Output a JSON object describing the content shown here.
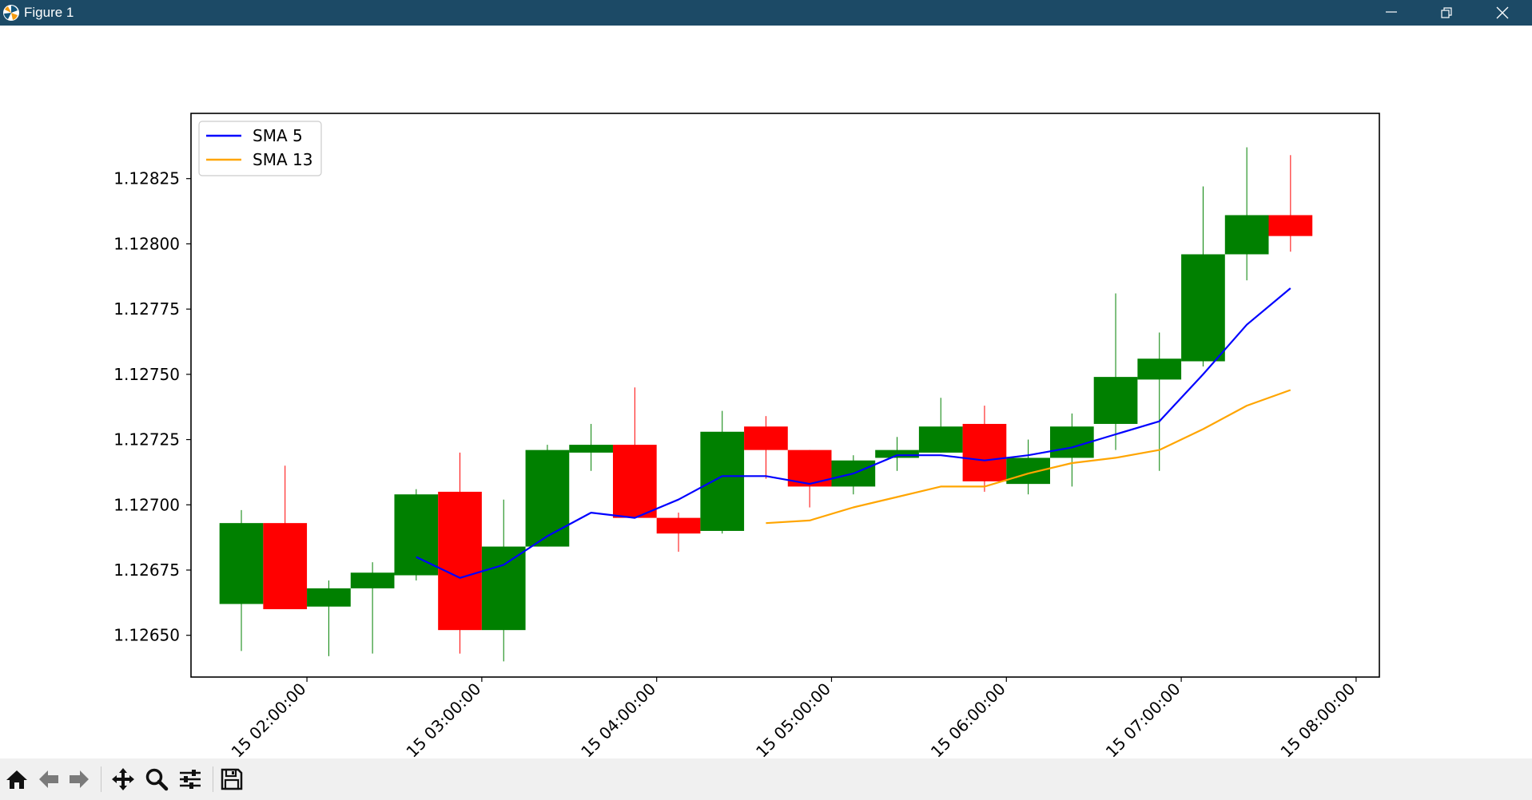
{
  "window": {
    "title": "Figure 1",
    "controls": [
      "minimize",
      "maximize",
      "close"
    ]
  },
  "toolbar": {
    "tools": [
      {
        "name": "home-icon",
        "tooltip": "Reset original view"
      },
      {
        "name": "back-icon",
        "tooltip": "Back to previous view"
      },
      {
        "name": "forward-icon",
        "tooltip": "Forward to next view"
      },
      {
        "name": "pan-icon",
        "tooltip": "Pan axes"
      },
      {
        "name": "zoom-icon",
        "tooltip": "Zoom to rectangle"
      },
      {
        "name": "configure-icon",
        "tooltip": "Configure subplots"
      },
      {
        "name": "save-icon",
        "tooltip": "Save the figure"
      }
    ]
  },
  "chart_data": {
    "type": "candlestick",
    "title": "",
    "xlabel": "",
    "ylabel": "",
    "interval_minutes": 15,
    "x_ticks": [
      "15 02:00:00",
      "15 03:00:00",
      "15 04:00:00",
      "15 05:00:00",
      "15 06:00:00",
      "15 07:00:00",
      "15 08:00:00"
    ],
    "y_ticks": [
      "1.12650",
      "1.12675",
      "1.12700",
      "1.12725",
      "1.12750",
      "1.12775",
      "1.12800",
      "1.12825"
    ],
    "ylim": [
      1.12634,
      1.1285
    ],
    "x_range_hours": [
      1.337,
      8.133
    ],
    "colors": {
      "up": "#008000",
      "down": "#ff0000",
      "sma5": "#0000ff",
      "sma13": "#ffa500"
    },
    "legend": {
      "location": "upper left",
      "entries": [
        "SMA 5",
        "SMA 13"
      ]
    },
    "candles": [
      {
        "t": 1.625,
        "o": 1.12662,
        "h": 1.12698,
        "l": 1.12644,
        "c": 1.12693
      },
      {
        "t": 1.875,
        "o": 1.12693,
        "h": 1.12715,
        "l": 1.1266,
        "c": 1.1266
      },
      {
        "t": 2.125,
        "o": 1.12661,
        "h": 1.12671,
        "l": 1.12642,
        "c": 1.12668
      },
      {
        "t": 2.375,
        "o": 1.12668,
        "h": 1.12678,
        "l": 1.12643,
        "c": 1.12674
      },
      {
        "t": 2.625,
        "o": 1.12673,
        "h": 1.12706,
        "l": 1.12671,
        "c": 1.12704
      },
      {
        "t": 2.875,
        "o": 1.12705,
        "h": 1.1272,
        "l": 1.12643,
        "c": 1.12652
      },
      {
        "t": 3.125,
        "o": 1.12652,
        "h": 1.12702,
        "l": 1.1264,
        "c": 1.12684
      },
      {
        "t": 3.375,
        "o": 1.12684,
        "h": 1.12723,
        "l": 1.12684,
        "c": 1.12721
      },
      {
        "t": 3.625,
        "o": 1.1272,
        "h": 1.12731,
        "l": 1.12713,
        "c": 1.12723
      },
      {
        "t": 3.875,
        "o": 1.12723,
        "h": 1.12745,
        "l": 1.12695,
        "c": 1.12695
      },
      {
        "t": 4.125,
        "o": 1.12695,
        "h": 1.12697,
        "l": 1.12682,
        "c": 1.12689
      },
      {
        "t": 4.375,
        "o": 1.1269,
        "h": 1.12736,
        "l": 1.12689,
        "c": 1.12728
      },
      {
        "t": 4.625,
        "o": 1.1273,
        "h": 1.12734,
        "l": 1.1271,
        "c": 1.12721
      },
      {
        "t": 4.875,
        "o": 1.12721,
        "h": 1.12721,
        "l": 1.12699,
        "c": 1.12707
      },
      {
        "t": 5.125,
        "o": 1.12707,
        "h": 1.12719,
        "l": 1.12704,
        "c": 1.12717
      },
      {
        "t": 5.375,
        "o": 1.12718,
        "h": 1.12726,
        "l": 1.12713,
        "c": 1.12721
      },
      {
        "t": 5.625,
        "o": 1.1272,
        "h": 1.12741,
        "l": 1.1272,
        "c": 1.1273
      },
      {
        "t": 5.875,
        "o": 1.12731,
        "h": 1.12738,
        "l": 1.12705,
        "c": 1.12709
      },
      {
        "t": 6.125,
        "o": 1.12708,
        "h": 1.12725,
        "l": 1.12704,
        "c": 1.12718
      },
      {
        "t": 6.375,
        "o": 1.12718,
        "h": 1.12735,
        "l": 1.12707,
        "c": 1.1273
      },
      {
        "t": 6.625,
        "o": 1.12731,
        "h": 1.12781,
        "l": 1.12721,
        "c": 1.12749
      },
      {
        "t": 6.875,
        "o": 1.12748,
        "h": 1.12766,
        "l": 1.12713,
        "c": 1.12756
      },
      {
        "t": 7.125,
        "o": 1.12755,
        "h": 1.12822,
        "l": 1.12753,
        "c": 1.12796
      },
      {
        "t": 7.375,
        "o": 1.12796,
        "h": 1.12837,
        "l": 1.12786,
        "c": 1.12811
      },
      {
        "t": 7.625,
        "o": 1.12811,
        "h": 1.12834,
        "l": 1.12797,
        "c": 1.12803
      }
    ],
    "series": [
      {
        "name": "SMA 5",
        "points": [
          [
            2.625,
            1.1268
          ],
          [
            2.875,
            1.12672
          ],
          [
            3.125,
            1.12677
          ],
          [
            3.375,
            1.12688
          ],
          [
            3.625,
            1.12697
          ],
          [
            3.875,
            1.12695
          ],
          [
            4.125,
            1.12702
          ],
          [
            4.375,
            1.12711
          ],
          [
            4.625,
            1.12711
          ],
          [
            4.875,
            1.12708
          ],
          [
            5.125,
            1.12712
          ],
          [
            5.375,
            1.12719
          ],
          [
            5.625,
            1.12719
          ],
          [
            5.875,
            1.12717
          ],
          [
            6.125,
            1.12719
          ],
          [
            6.375,
            1.12722
          ],
          [
            6.625,
            1.12727
          ],
          [
            6.875,
            1.12732
          ],
          [
            7.125,
            1.1275
          ],
          [
            7.375,
            1.12769
          ],
          [
            7.625,
            1.12783
          ]
        ]
      },
      {
        "name": "SMA 13",
        "points": [
          [
            4.625,
            1.12693
          ],
          [
            4.875,
            1.12694
          ],
          [
            5.125,
            1.12699
          ],
          [
            5.375,
            1.12703
          ],
          [
            5.625,
            1.12707
          ],
          [
            5.875,
            1.12707
          ],
          [
            6.125,
            1.12712
          ],
          [
            6.375,
            1.12716
          ],
          [
            6.625,
            1.12718
          ],
          [
            6.875,
            1.12721
          ],
          [
            7.125,
            1.12729
          ],
          [
            7.375,
            1.12738
          ],
          [
            7.625,
            1.12744
          ]
        ]
      }
    ]
  }
}
